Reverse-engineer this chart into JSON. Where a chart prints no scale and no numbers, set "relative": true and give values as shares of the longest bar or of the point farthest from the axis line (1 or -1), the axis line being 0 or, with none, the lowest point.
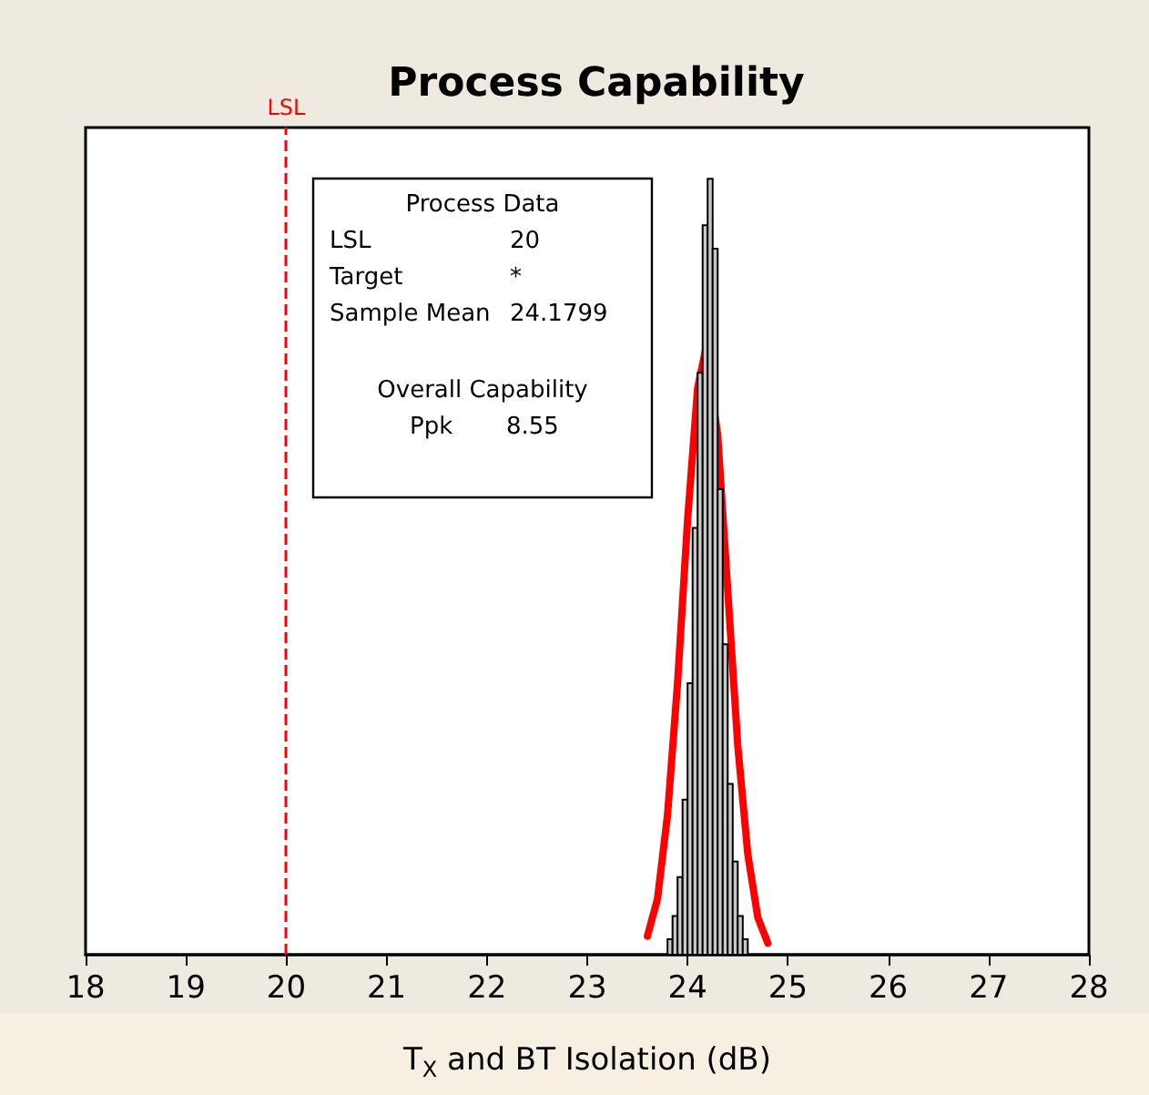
{
  "chart_data": {
    "type": "histogram",
    "title": "Process Capability",
    "xlabel": "T$_{X}$ and BT Isolation (dB)",
    "relative": true,
    "bins": [
      23.8,
      23.85,
      23.9,
      23.95,
      24.0,
      24.05,
      24.1,
      24.15,
      24.2,
      24.25,
      24.3,
      24.35,
      24.4,
      24.45,
      24.5,
      24.55,
      24.6
    ],
    "series": [
      {
        "color": "#c8c8c8",
        "values": [
          0.02,
          0.05,
          0.1,
          0.2,
          0.35,
          0.55,
          0.75,
          0.94,
          1.0,
          0.91,
          0.6,
          0.4,
          0.22,
          0.12,
          0.05,
          0.02
        ]
      },
      {
        "type": "line",
        "color": "#ff0000",
        "x": [
          23.6,
          23.7,
          23.8,
          23.9,
          24.0,
          24.1,
          24.18,
          24.3,
          24.4,
          24.5,
          24.6,
          24.7,
          24.8
        ],
        "values": [
          0.024,
          0.072,
          0.18,
          0.35,
          0.56,
          0.73,
          0.78,
          0.67,
          0.47,
          0.27,
          0.13,
          0.048,
          0.015
        ]
      }
    ],
    "xlim": [
      18,
      28
    ],
    "xticks": [
      18,
      19,
      20,
      21,
      22,
      23,
      24,
      25,
      26,
      27,
      28
    ],
    "ref_lines": [
      {
        "axis": "x",
        "value": 20,
        "label": "LSL",
        "color": "#ff0000",
        "line_style": "dashed"
      }
    ],
    "annotations": [
      "Process Data",
      "LSL",
      "20",
      "Target",
      "*",
      "Sample Mean",
      "24.1799",
      "Overall Capability",
      "Ppk",
      "8.55"
    ],
    "grid": false,
    "marker": "none"
  }
}
